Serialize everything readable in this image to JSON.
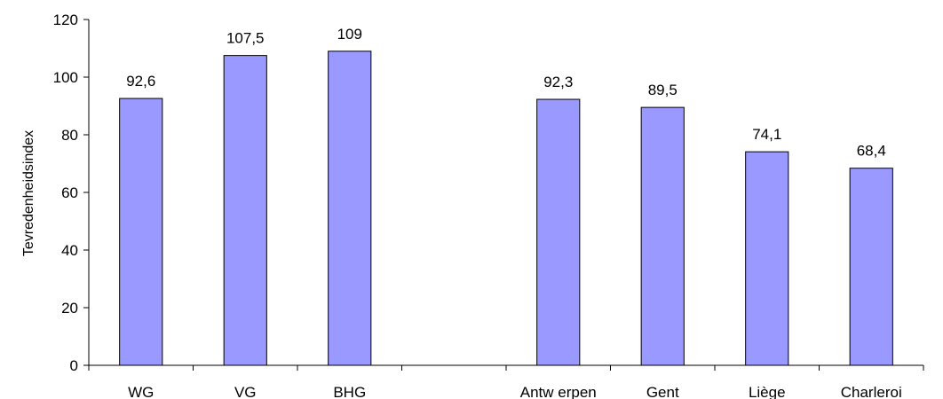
{
  "chart_data": {
    "type": "bar",
    "categories": [
      "WG",
      "VG",
      "BHG",
      "",
      "Antw erpen",
      "Gent",
      "Liège",
      "Charleroi"
    ],
    "values": [
      92.6,
      107.5,
      109,
      null,
      92.3,
      89.5,
      74.1,
      68.4
    ],
    "data_labels": [
      "92,6",
      "107,5",
      "109",
      "",
      "92,3",
      "89,5",
      "74,1",
      "68,4"
    ],
    "title": "",
    "xlabel": "",
    "ylabel": "Tevredenheidsindex",
    "ylim": [
      0,
      120
    ],
    "yticks": [
      0,
      20,
      40,
      60,
      80,
      100,
      120
    ],
    "grid": false,
    "legend": "none",
    "colors": {
      "bar_fill": "#9999ff",
      "bar_stroke": "#000000",
      "axis": "#000000"
    }
  }
}
